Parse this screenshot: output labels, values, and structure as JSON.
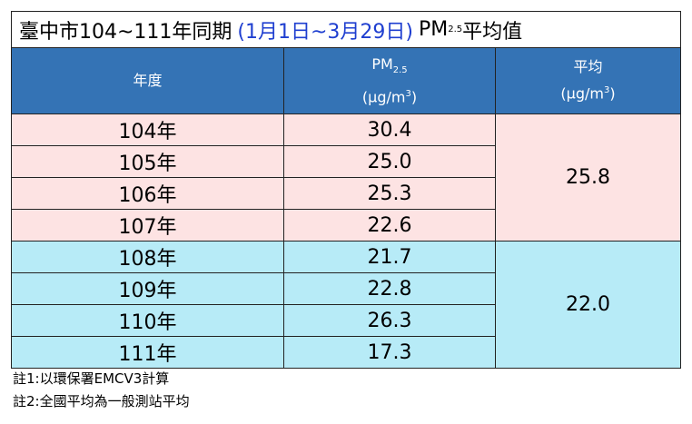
{
  "title": {
    "text": "臺中市104~111年同期",
    "date_range": "(1月1日~3月29日)",
    "pm": "PM",
    "pm_sub": "2.5",
    "suffix": "平均值"
  },
  "table": {
    "headers": [
      {
        "text": "年度"
      },
      {
        "text": "PM",
        "sub": "2.5",
        "unit": "(μg/m",
        "unit_sup": "3",
        "unit_end": ")"
      },
      {
        "text": "平均",
        "unit": "(μg/m",
        "unit_sup": "3",
        "unit_end": ")"
      }
    ],
    "rows": [
      [
        "104年",
        "30.4"
      ],
      [
        "105年",
        "25.0"
      ],
      [
        "106年",
        "25.3"
      ],
      [
        "107年",
        "22.6"
      ],
      [
        "108年",
        "21.7"
      ],
      [
        "109年",
        "22.8"
      ],
      [
        "110年",
        "26.3"
      ],
      [
        "111年",
        "17.3"
      ]
    ],
    "averages": [
      "25.8",
      "22.0"
    ]
  },
  "notes": [
    "註1:以環保署EMCV3計算",
    "註2:全國平均為一般測站平均"
  ]
}
